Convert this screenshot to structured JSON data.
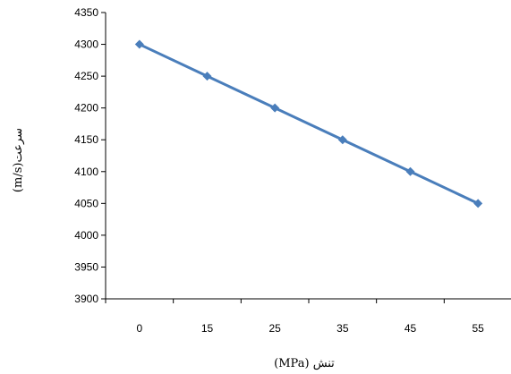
{
  "chart_data": {
    "type": "line",
    "title": "",
    "xlabel": "تنش (MPa)",
    "ylabel": "سرعت(m/s)",
    "categories": [
      "0",
      "15",
      "25",
      "35",
      "45",
      "55"
    ],
    "series": [
      {
        "values": [
          4300,
          4250,
          4200,
          4150,
          4100,
          4050
        ],
        "color": "#4a7ebb",
        "marker": "diamond"
      }
    ],
    "ylim": [
      3900,
      4350
    ],
    "yticks": [
      3900,
      3950,
      4000,
      4050,
      4100,
      4150,
      4200,
      4250,
      4300,
      4350
    ],
    "grid": false,
    "legend": "none"
  }
}
